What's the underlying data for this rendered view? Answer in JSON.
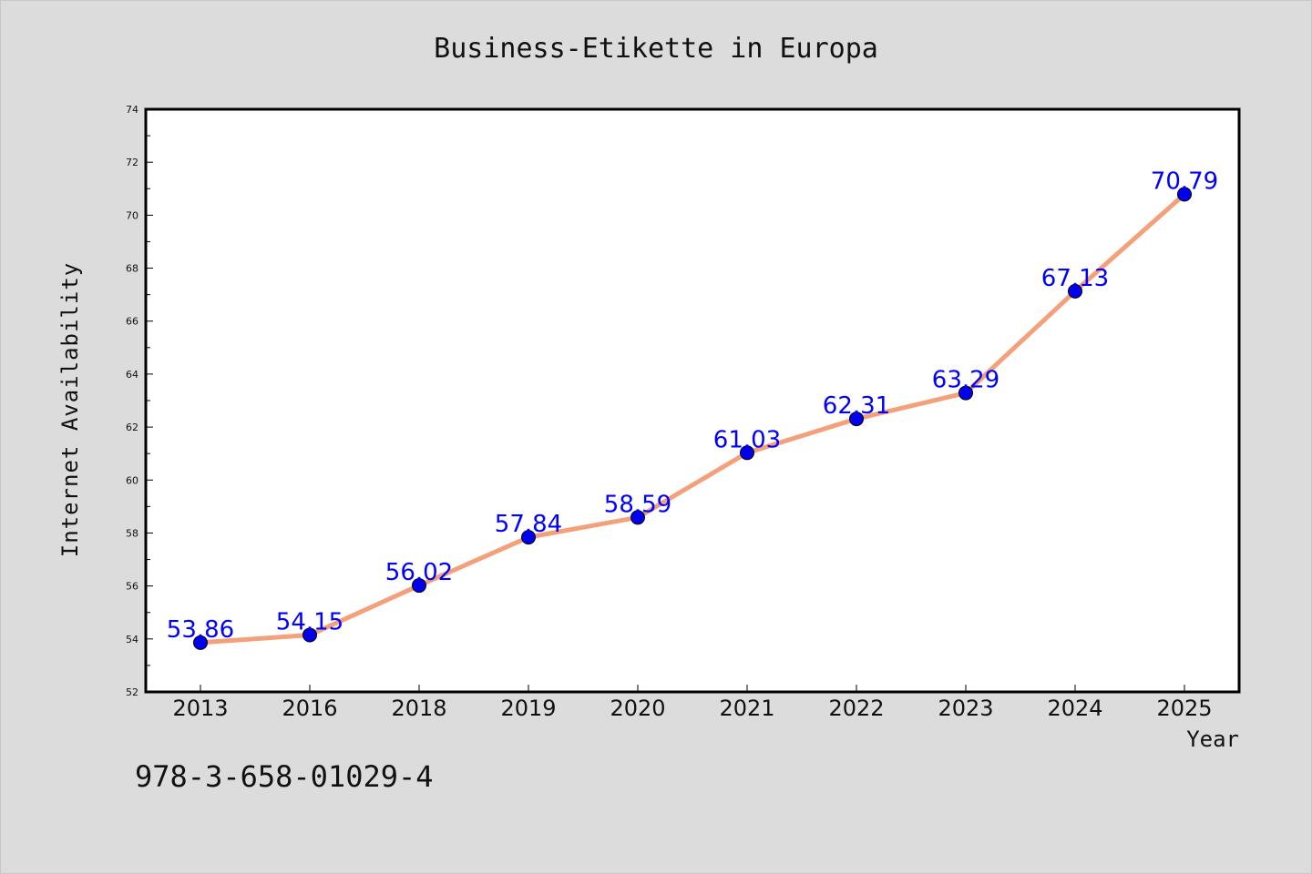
{
  "chart_data": {
    "type": "line",
    "title": "Business-Etikette in Europa",
    "xlabel": "Year",
    "ylabel": "Internet Availability",
    "categories": [
      "2013",
      "2016",
      "2018",
      "2019",
      "2020",
      "2021",
      "2022",
      "2023",
      "2024",
      "2025"
    ],
    "series": [
      {
        "values": [
          53.86,
          54.15,
          56.02,
          57.84,
          58.59,
          61.03,
          62.31,
          63.29,
          67.13,
          70.79
        ],
        "labels": [
          "53.86",
          "54.15",
          "56.02",
          "57.84",
          "58.59",
          "61.03",
          "62.31",
          "63.29",
          "67.13",
          "70.79"
        ]
      }
    ],
    "ylim": [
      52,
      74
    ],
    "yticks": [
      "52",
      "54",
      "56",
      "58",
      "60",
      "62",
      "64",
      "66",
      "68",
      "70",
      "72",
      "74"
    ],
    "grid": false,
    "line_color": "#f4a07a",
    "marker_color": "#0000ee",
    "label_color": "#0000ff"
  },
  "annotation": "978-3-658-01029-4"
}
